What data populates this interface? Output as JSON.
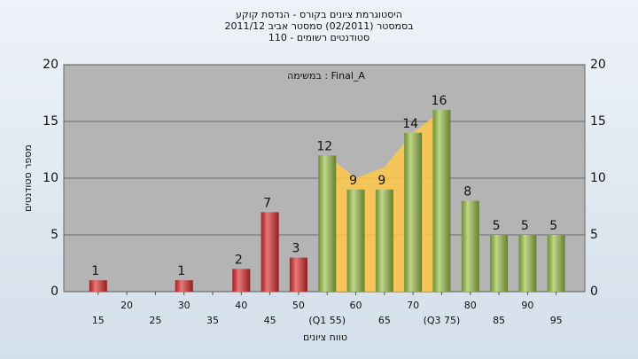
{
  "chart_data": {
    "type": "bar",
    "title": "היסטוגרמת ציונים בקורס - הנדסת קוקע",
    "subtitle": "בסמסטר  (02/2011)  סמסטר אביב 2011/12",
    "subtitle2": "סטודנטים רשומים - 110",
    "annotation": "במשימה : Final_A",
    "x_label": "טווח ציונים",
    "y_label": "מספר סטודנטים",
    "x": [
      15,
      20,
      25,
      30,
      35,
      40,
      45,
      50,
      55,
      60,
      65,
      70,
      75,
      80,
      85,
      90,
      95
    ],
    "series": [
      {
        "colors": [
          "#e03030",
          "#e03030",
          "#e03030",
          "#e03030",
          "#e03030",
          "#e03030",
          "#e03030",
          "#e03030",
          "#9cc24a",
          "#9cc24a",
          "#9cc24a",
          "#9cc24a",
          "#9cc24a",
          "#9cc24a",
          "#9cc24a",
          "#9cc24a",
          "#9cc24a"
        ],
        "values": [
          1,
          0,
          0,
          1,
          0,
          2,
          7,
          3,
          12,
          9,
          9,
          14,
          16,
          8,
          5,
          5,
          5
        ]
      }
    ],
    "area": {
      "color": "#ffc94a",
      "x": [
        55,
        60,
        65,
        70,
        75
      ],
      "values": [
        12,
        10,
        11,
        14,
        16
      ]
    },
    "xlim": [
      9,
      100
    ],
    "xticks": [
      15,
      20,
      25,
      30,
      35,
      40,
      45,
      50,
      {
        "value": 55,
        "label": "(Q1 55)"
      },
      60,
      65,
      70,
      {
        "value": 75,
        "label": "(Q3 75)"
      },
      80,
      85,
      90,
      95
    ],
    "ylim": [
      0,
      20
    ],
    "yticks": [
      0,
      5,
      10,
      15,
      20
    ],
    "grid": true
  }
}
